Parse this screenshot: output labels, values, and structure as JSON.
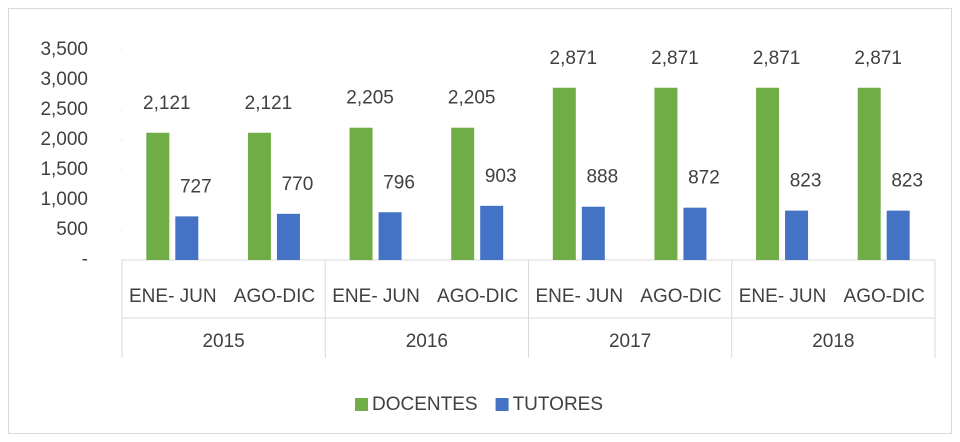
{
  "chart_data": {
    "type": "bar",
    "categories": [
      "ENE- JUN",
      "AGO-DIC",
      "ENE- JUN",
      "AGO-DIC",
      "ENE- JUN",
      "AGO-DIC",
      "ENE- JUN",
      "AGO-DIC"
    ],
    "groups": [
      "2015",
      "2016",
      "2017",
      "2018"
    ],
    "series": [
      {
        "name": "DOCENTES",
        "color": "#70ad47",
        "values": [
          2121,
          2121,
          2205,
          2205,
          2871,
          2871,
          2871,
          2871
        ],
        "value_labels": [
          "2,121",
          "2,121",
          "2,205",
          "2,205",
          "2,871",
          "2,871",
          "2,871",
          "2,871"
        ]
      },
      {
        "name": "TUTORES",
        "color": "#4472c4",
        "values": [
          727,
          770,
          796,
          903,
          888,
          872,
          823,
          823
        ]
      }
    ],
    "ylim": [
      0,
      3500
    ],
    "yticks": [
      {
        "value": 0,
        "label": "-"
      },
      500,
      {
        "value": 1000,
        "label": "1,000"
      },
      {
        "value": 1500,
        "label": "1,500"
      },
      {
        "value": 2000,
        "label": "2,000"
      },
      {
        "value": 2500,
        "label": "2,500"
      },
      {
        "value": 3000,
        "label": "3,000"
      },
      {
        "value": 3500,
        "label": "3,500"
      }
    ],
    "legend": "bottom"
  }
}
